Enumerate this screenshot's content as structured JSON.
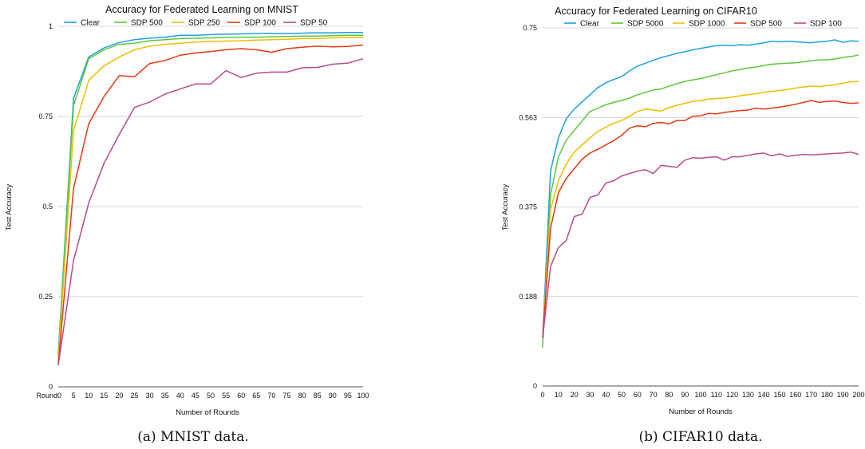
{
  "chart_data": [
    {
      "type": "line",
      "title": "Accuracy for Federated Learning on MNIST",
      "xlabel": "Number of Rounds",
      "ylabel": "Test Accuracy",
      "caption": "(a) MNIST data.",
      "x_first_tick_label": "Round0",
      "xlim": [
        0,
        100
      ],
      "ylim": [
        0,
        1
      ],
      "xticks": [
        0,
        5,
        10,
        15,
        20,
        25,
        30,
        35,
        40,
        45,
        50,
        55,
        60,
        65,
        70,
        75,
        80,
        85,
        90,
        95,
        100
      ],
      "yticks": [
        0,
        0.25,
        0.5,
        0.75,
        1
      ],
      "ytick_labels": [
        "0",
        "0.25",
        "0.5",
        "0.75",
        "1"
      ],
      "grid": "horizontal",
      "legend_position": "top",
      "x": [
        0,
        5,
        10,
        15,
        20,
        25,
        30,
        35,
        40,
        45,
        50,
        55,
        60,
        65,
        70,
        75,
        80,
        85,
        90,
        95,
        100
      ],
      "series": [
        {
          "name": "Clear",
          "color": "#1f9fe0",
          "values": [
            0.09,
            0.8,
            0.915,
            0.94,
            0.955,
            0.963,
            0.967,
            0.97,
            0.975,
            0.975,
            0.977,
            0.978,
            0.979,
            0.98,
            0.98,
            0.98,
            0.981,
            0.982,
            0.982,
            0.983,
            0.983
          ]
        },
        {
          "name": "SDP 500",
          "color": "#5dc83a",
          "values": [
            0.08,
            0.78,
            0.91,
            0.935,
            0.95,
            0.953,
            0.96,
            0.963,
            0.966,
            0.967,
            0.968,
            0.969,
            0.97,
            0.97,
            0.971,
            0.972,
            0.973,
            0.973,
            0.974,
            0.975,
            0.975
          ]
        },
        {
          "name": "SDP 250",
          "color": "#f0be00",
          "values": [
            0.07,
            0.71,
            0.85,
            0.89,
            0.915,
            0.935,
            0.945,
            0.95,
            0.953,
            0.956,
            0.958,
            0.959,
            0.96,
            0.962,
            0.963,
            0.964,
            0.966,
            0.966,
            0.968,
            0.969,
            0.97
          ]
        },
        {
          "name": "SDP 100",
          "color": "#e23a12",
          "values": [
            0.06,
            0.55,
            0.73,
            0.805,
            0.863,
            0.86,
            0.897,
            0.905,
            0.92,
            0.926,
            0.93,
            0.935,
            0.938,
            0.935,
            0.928,
            0.938,
            0.942,
            0.945,
            0.943,
            0.944,
            0.948
          ]
        },
        {
          "name": "SDP  50",
          "color": "#b74b8f",
          "values": [
            0.06,
            0.35,
            0.51,
            0.62,
            0.7,
            0.775,
            0.79,
            0.812,
            0.826,
            0.84,
            0.84,
            0.877,
            0.858,
            0.87,
            0.873,
            0.873,
            0.885,
            0.886,
            0.895,
            0.898,
            0.91
          ]
        }
      ]
    },
    {
      "type": "line",
      "title": "Accuracy for Federated Learning on CIFAR10",
      "xlabel": "Number of Rounds",
      "ylabel": "Test Accuracy",
      "caption": "(b) CIFAR10 data.",
      "xlim": [
        0,
        200
      ],
      "ylim": [
        0,
        0.75
      ],
      "xticks": [
        0,
        10,
        20,
        30,
        40,
        50,
        60,
        70,
        80,
        90,
        100,
        110,
        120,
        130,
        140,
        150,
        160,
        170,
        180,
        190,
        200
      ],
      "yticks": [
        0,
        0.1875,
        0.375,
        0.5625,
        0.75
      ],
      "ytick_labels": [
        "0",
        "0.188",
        "0.375",
        "0.563",
        "0.75"
      ],
      "grid": "horizontal",
      "legend_position": "top",
      "x": [
        0,
        5,
        10,
        15,
        20,
        25,
        30,
        35,
        40,
        45,
        50,
        55,
        60,
        65,
        70,
        75,
        80,
        85,
        90,
        95,
        100,
        105,
        110,
        115,
        120,
        125,
        130,
        135,
        140,
        145,
        150,
        155,
        160,
        165,
        170,
        175,
        180,
        185,
        190,
        195,
        200
      ],
      "series": [
        {
          "name": "Clear",
          "color": "#1f9fe0",
          "values": [
            0.1,
            0.45,
            0.52,
            0.56,
            0.58,
            0.595,
            0.61,
            0.625,
            0.635,
            0.642,
            0.648,
            0.66,
            0.67,
            0.676,
            0.682,
            0.688,
            0.692,
            0.697,
            0.7,
            0.704,
            0.707,
            0.71,
            0.713,
            0.714,
            0.713,
            0.715,
            0.714,
            0.716,
            0.719,
            0.722,
            0.721,
            0.722,
            0.721,
            0.72,
            0.719,
            0.721,
            0.722,
            0.725,
            0.72,
            0.723,
            0.722
          ]
        },
        {
          "name": "SDP 5000",
          "color": "#5dc83a",
          "values": [
            0.08,
            0.4,
            0.48,
            0.515,
            0.535,
            0.555,
            0.575,
            0.582,
            0.589,
            0.594,
            0.598,
            0.603,
            0.61,
            0.615,
            0.62,
            0.622,
            0.628,
            0.633,
            0.638,
            0.641,
            0.644,
            0.648,
            0.652,
            0.656,
            0.66,
            0.663,
            0.666,
            0.668,
            0.671,
            0.674,
            0.675,
            0.676,
            0.677,
            0.679,
            0.681,
            0.683,
            0.683,
            0.685,
            0.688,
            0.69,
            0.693
          ]
        },
        {
          "name": "SDP 1000",
          "color": "#f0be00",
          "values": [
            0.1,
            0.37,
            0.43,
            0.465,
            0.49,
            0.505,
            0.52,
            0.533,
            0.542,
            0.55,
            0.556,
            0.565,
            0.575,
            0.58,
            0.578,
            0.576,
            0.583,
            0.588,
            0.592,
            0.596,
            0.598,
            0.601,
            0.602,
            0.603,
            0.605,
            0.608,
            0.61,
            0.612,
            0.615,
            0.617,
            0.619,
            0.621,
            0.624,
            0.626,
            0.628,
            0.627,
            0.629,
            0.631,
            0.634,
            0.637,
            0.638
          ]
        },
        {
          "name": "SDP 500",
          "color": "#e23a12",
          "values": [
            0.1,
            0.33,
            0.405,
            0.435,
            0.455,
            0.475,
            0.488,
            0.496,
            0.505,
            0.514,
            0.525,
            0.54,
            0.545,
            0.543,
            0.55,
            0.552,
            0.549,
            0.556,
            0.556,
            0.565,
            0.566,
            0.571,
            0.57,
            0.573,
            0.575,
            0.577,
            0.578,
            0.582,
            0.58,
            0.582,
            0.584,
            0.587,
            0.59,
            0.594,
            0.598,
            0.594,
            0.596,
            0.597,
            0.594,
            0.592,
            0.593
          ]
        },
        {
          "name": "SDP 100",
          "color": "#b74b8f",
          "values": [
            0.1,
            0.25,
            0.29,
            0.305,
            0.355,
            0.36,
            0.395,
            0.4,
            0.425,
            0.43,
            0.44,
            0.445,
            0.45,
            0.453,
            0.445,
            0.462,
            0.46,
            0.458,
            0.473,
            0.478,
            0.477,
            0.479,
            0.48,
            0.473,
            0.48,
            0.48,
            0.483,
            0.486,
            0.488,
            0.482,
            0.486,
            0.481,
            0.483,
            0.485,
            0.484,
            0.485,
            0.486,
            0.487,
            0.488,
            0.49,
            0.485
          ]
        }
      ]
    }
  ]
}
